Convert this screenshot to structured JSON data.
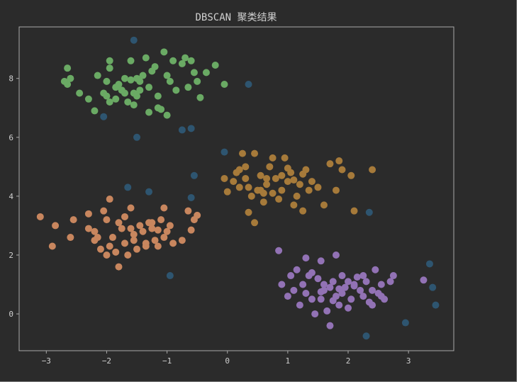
{
  "chart_data": {
    "type": "scatter",
    "title": "DBSCAN 聚类结果",
    "xlabel": "",
    "ylabel": "",
    "xlim": [
      -3.45,
      3.75
    ],
    "ylim": [
      -1.25,
      9.75
    ],
    "xticks": [
      -3,
      -2,
      -1,
      0,
      1,
      2,
      3
    ],
    "yticks": [
      0,
      2,
      4,
      6,
      8
    ],
    "grid": false,
    "colors": {
      "background": "#2b2b2b",
      "axes_frame": "#aaaaaa",
      "text": "#cfcfcf"
    },
    "series": [
      {
        "color": "#6aaa64",
        "points": [
          [
            -2.65,
            8.35
          ],
          [
            -2.6,
            8.0
          ],
          [
            -2.65,
            7.8
          ],
          [
            -2.7,
            7.9
          ],
          [
            -2.45,
            7.5
          ],
          [
            -2.3,
            7.3
          ],
          [
            -2.2,
            6.9
          ],
          [
            -2.15,
            8.1
          ],
          [
            -2.05,
            7.5
          ],
          [
            -2.0,
            7.4
          ],
          [
            -1.95,
            8.35
          ],
          [
            -1.95,
            8.6
          ],
          [
            -1.85,
            7.7
          ],
          [
            -1.8,
            7.8
          ],
          [
            -1.75,
            7.6
          ],
          [
            -1.7,
            8.0
          ],
          [
            -1.65,
            7.2
          ],
          [
            -1.6,
            7.95
          ],
          [
            -1.6,
            8.6
          ],
          [
            -1.55,
            7.5
          ],
          [
            -1.5,
            8.0
          ],
          [
            -1.45,
            7.9
          ],
          [
            -1.4,
            8.1
          ],
          [
            -1.35,
            8.7
          ],
          [
            -1.3,
            7.7
          ],
          [
            -1.25,
            8.25
          ],
          [
            -1.2,
            8.4
          ],
          [
            -1.15,
            7.4
          ],
          [
            -1.1,
            6.95
          ],
          [
            -1.05,
            8.9
          ],
          [
            -1.0,
            8.1
          ],
          [
            -0.95,
            7.9
          ],
          [
            -0.9,
            8.6
          ],
          [
            -0.85,
            7.6
          ],
          [
            -0.75,
            8.5
          ],
          [
            -0.7,
            8.7
          ],
          [
            -0.65,
            7.7
          ],
          [
            -0.6,
            8.6
          ],
          [
            -0.55,
            8.2
          ],
          [
            -0.5,
            7.9
          ],
          [
            -0.45,
            7.35
          ],
          [
            -0.35,
            8.2
          ],
          [
            -0.2,
            8.45
          ],
          [
            -0.05,
            7.8
          ],
          [
            -1.75,
            7.6
          ],
          [
            -1.85,
            7.3
          ],
          [
            -1.5,
            7.4
          ],
          [
            -1.7,
            7.5
          ],
          [
            -1.55,
            7.1
          ],
          [
            -1.3,
            6.85
          ],
          [
            -1.0,
            6.75
          ],
          [
            -1.95,
            7.2
          ],
          [
            -1.15,
            7.0
          ],
          [
            -2.0,
            7.9
          ],
          [
            -1.45,
            7.6
          ]
        ]
      },
      {
        "color": "#c8865e",
        "points": [
          [
            -3.1,
            3.3
          ],
          [
            -2.85,
            3.0
          ],
          [
            -2.9,
            2.3
          ],
          [
            -2.6,
            2.6
          ],
          [
            -2.55,
            3.2
          ],
          [
            -2.3,
            3.4
          ],
          [
            -2.2,
            2.8
          ],
          [
            -2.2,
            2.5
          ],
          [
            -2.1,
            2.2
          ],
          [
            -2.05,
            3.5
          ],
          [
            -2.0,
            3.2
          ],
          [
            -2.0,
            2.0
          ],
          [
            -1.95,
            3.9
          ],
          [
            -1.9,
            2.6
          ],
          [
            -1.85,
            2.1
          ],
          [
            -1.8,
            3.1
          ],
          [
            -1.75,
            2.9
          ],
          [
            -1.7,
            3.3
          ],
          [
            -1.65,
            2.0
          ],
          [
            -1.6,
            3.6
          ],
          [
            -1.55,
            2.7
          ],
          [
            -1.5,
            2.2
          ],
          [
            -1.45,
            3.0
          ],
          [
            -1.4,
            2.8
          ],
          [
            -1.35,
            2.4
          ],
          [
            -1.3,
            3.1
          ],
          [
            -1.25,
            2.9
          ],
          [
            -1.2,
            2.5
          ],
          [
            -1.15,
            2.3
          ],
          [
            -1.1,
            3.2
          ],
          [
            -1.05,
            3.6
          ],
          [
            -1.0,
            2.8
          ],
          [
            -0.95,
            3.0
          ],
          [
            -0.9,
            2.4
          ],
          [
            -0.75,
            2.5
          ],
          [
            -0.65,
            3.5
          ],
          [
            -0.55,
            3.2
          ],
          [
            -0.5,
            3.35
          ],
          [
            -1.8,
            1.6
          ],
          [
            -1.95,
            2.3
          ],
          [
            -1.7,
            2.4
          ],
          [
            -1.6,
            2.9
          ],
          [
            -1.25,
            3.1
          ],
          [
            -1.35,
            2.3
          ],
          [
            -2.15,
            2.6
          ],
          [
            -2.3,
            2.9
          ],
          [
            -1.05,
            2.6
          ],
          [
            -1.55,
            2.5
          ],
          [
            -0.6,
            2.85
          ],
          [
            -1.15,
            2.85
          ]
        ]
      },
      {
        "color": "#a67a3a",
        "points": [
          [
            -0.05,
            4.6
          ],
          [
            0.0,
            4.15
          ],
          [
            0.1,
            4.5
          ],
          [
            0.15,
            4.8
          ],
          [
            0.2,
            4.9
          ],
          [
            0.25,
            5.45
          ],
          [
            0.3,
            5.0
          ],
          [
            0.35,
            4.3
          ],
          [
            0.35,
            3.45
          ],
          [
            0.4,
            4.0
          ],
          [
            0.45,
            5.45
          ],
          [
            0.5,
            4.2
          ],
          [
            0.55,
            4.7
          ],
          [
            0.6,
            3.8
          ],
          [
            0.65,
            4.4
          ],
          [
            0.7,
            5.0
          ],
          [
            0.75,
            5.3
          ],
          [
            0.8,
            4.6
          ],
          [
            0.85,
            3.9
          ],
          [
            0.9,
            4.2
          ],
          [
            0.95,
            5.3
          ],
          [
            1.0,
            4.5
          ],
          [
            1.05,
            4.8
          ],
          [
            1.1,
            3.7
          ],
          [
            1.15,
            4.0
          ],
          [
            1.2,
            4.4
          ],
          [
            1.25,
            3.5
          ],
          [
            1.3,
            4.9
          ],
          [
            1.35,
            4.2
          ],
          [
            1.4,
            4.5
          ],
          [
            1.5,
            4.3
          ],
          [
            1.6,
            3.7
          ],
          [
            1.7,
            5.1
          ],
          [
            1.8,
            4.2
          ],
          [
            1.85,
            5.2
          ],
          [
            1.9,
            4.9
          ],
          [
            2.1,
            3.5
          ],
          [
            2.4,
            4.9
          ],
          [
            2.05,
            4.7
          ],
          [
            0.45,
            3.1
          ],
          [
            0.6,
            4.1
          ],
          [
            0.55,
            4.2
          ],
          [
            0.75,
            4.1
          ],
          [
            0.9,
            4.7
          ],
          [
            1.1,
            4.55
          ],
          [
            0.3,
            4.6
          ],
          [
            0.2,
            4.3
          ],
          [
            0.65,
            4.6
          ],
          [
            1.0,
            4.95
          ],
          [
            1.25,
            4.75
          ]
        ]
      },
      {
        "color": "#9272b5",
        "points": [
          [
            0.85,
            2.15
          ],
          [
            0.9,
            1.0
          ],
          [
            1.0,
            0.6
          ],
          [
            1.05,
            1.3
          ],
          [
            1.1,
            0.8
          ],
          [
            1.15,
            1.5
          ],
          [
            1.2,
            0.3
          ],
          [
            1.25,
            1.0
          ],
          [
            1.3,
            0.7
          ],
          [
            1.35,
            1.3
          ],
          [
            1.4,
            0.5
          ],
          [
            1.45,
            0.0
          ],
          [
            1.5,
            1.2
          ],
          [
            1.55,
            0.5
          ],
          [
            1.6,
            0.8
          ],
          [
            1.65,
            0.1
          ],
          [
            1.7,
            -0.4
          ],
          [
            1.75,
            1.1
          ],
          [
            1.8,
            0.6
          ],
          [
            1.85,
            0.3
          ],
          [
            1.9,
            1.3
          ],
          [
            1.95,
            0.9
          ],
          [
            2.0,
            0.2
          ],
          [
            2.05,
            0.5
          ],
          [
            2.1,
            1.0
          ],
          [
            2.15,
            1.25
          ],
          [
            2.2,
            0.8
          ],
          [
            2.25,
            0.6
          ],
          [
            2.3,
            1.1
          ],
          [
            2.35,
            0.4
          ],
          [
            2.4,
            0.8
          ],
          [
            2.45,
            1.5
          ],
          [
            2.5,
            0.7
          ],
          [
            2.55,
            1.0
          ],
          [
            2.6,
            0.5
          ],
          [
            2.7,
            1.1
          ],
          [
            2.75,
            1.3
          ],
          [
            3.25,
            1.15
          ],
          [
            1.8,
            2.0
          ],
          [
            1.55,
            1.8
          ],
          [
            1.3,
            1.9
          ],
          [
            2.0,
            1.1
          ],
          [
            1.7,
            0.9
          ],
          [
            1.6,
            1.0
          ],
          [
            1.9,
            0.7
          ],
          [
            2.25,
            1.3
          ],
          [
            2.4,
            0.3
          ],
          [
            1.75,
            0.45
          ],
          [
            2.1,
            0.95
          ],
          [
            1.85,
            0.85
          ],
          [
            2.55,
            0.6
          ],
          [
            1.4,
            1.4
          ],
          [
            1.55,
            0.75
          ]
        ]
      },
      {
        "color": "#2e5570",
        "name_hidden": true,
        "points": [
          [
            -1.55,
            9.3
          ],
          [
            -2.05,
            6.7
          ],
          [
            -1.5,
            6.0
          ],
          [
            -0.75,
            6.25
          ],
          [
            -0.6,
            6.3
          ],
          [
            -0.55,
            4.7
          ],
          [
            -0.6,
            3.95
          ],
          [
            -1.65,
            4.3
          ],
          [
            -1.3,
            4.15
          ],
          [
            -0.95,
            1.3
          ],
          [
            0.35,
            7.8
          ],
          [
            -0.05,
            5.5
          ],
          [
            2.35,
            3.45
          ],
          [
            3.35,
            1.7
          ],
          [
            3.4,
            0.9
          ],
          [
            3.45,
            0.3
          ],
          [
            2.95,
            -0.3
          ],
          [
            2.3,
            -0.75
          ]
        ]
      }
    ]
  }
}
